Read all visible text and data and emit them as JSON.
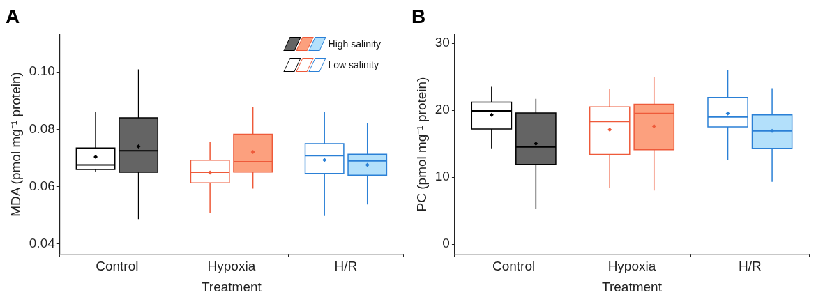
{
  "chart_data": [
    {
      "type": "box",
      "title": "A",
      "xlabel": "Treatment",
      "ylabel": "MDA (pmol mg⁻¹ protein)",
      "categories": [
        "Control",
        "Hypoxia",
        "H/R"
      ],
      "ylim": [
        0.0365,
        0.113
      ],
      "yticks": [
        0.04,
        0.06,
        0.08,
        {
          "value": 0.1,
          "label": "0.10"
        }
      ],
      "grid": false,
      "legend": "top right",
      "series": [
        {
          "name": "Low salinity",
          "colors": [
            "#000000",
            "#ee5a3a",
            "#2b80d6"
          ],
          "boxes": [
            {
              "low": 0.0653,
              "q1": 0.066,
              "median": 0.0676,
              "q3": 0.0735,
              "high": 0.086,
              "mean": 0.0704
            },
            {
              "low": 0.0509,
              "q1": 0.0613,
              "median": 0.065,
              "q3": 0.0692,
              "high": 0.0757,
              "mean": 0.0649
            },
            {
              "low": 0.0498,
              "q1": 0.0646,
              "median": 0.0708,
              "q3": 0.075,
              "high": 0.086,
              "mean": 0.0693
            }
          ]
        },
        {
          "name": "High salinity",
          "colors": [
            "#646464",
            "#fca07e",
            "#b3e0fb"
          ],
          "boxes": [
            {
              "low": 0.0487,
              "q1": 0.065,
              "median": 0.0725,
              "q3": 0.084,
              "high": 0.1009,
              "mean": 0.074
            },
            {
              "low": 0.0593,
              "q1": 0.0651,
              "median": 0.0687,
              "q3": 0.0783,
              "high": 0.0878,
              "mean": 0.0721
            },
            {
              "low": 0.0538,
              "q1": 0.064,
              "median": 0.069,
              "q3": 0.0713,
              "high": 0.0821,
              "mean": 0.0676
            }
          ]
        }
      ]
    },
    {
      "type": "box",
      "title": "B",
      "xlabel": "Treatment",
      "ylabel": "PC (pmol mg⁻¹ protein)",
      "categories": [
        "Control",
        "Hypoxia",
        "H/R"
      ],
      "ylim": [
        -1.5,
        31.3
      ],
      "yticks": [
        0,
        10,
        20,
        30
      ],
      "grid": false,
      "series": [
        {
          "colors": [
            "#000000",
            "#ee5a3a",
            "#2b80d6"
          ],
          "boxes": [
            {
              "low": 14.3,
              "q1": 17.2,
              "median": 19.9,
              "q3": 21.2,
              "high": 23.5,
              "mean": 19.3
            },
            {
              "low": 8.4,
              "q1": 13.4,
              "median": 18.3,
              "q3": 20.5,
              "high": 23.2,
              "mean": 17.1
            },
            {
              "low": 12.6,
              "q1": 17.5,
              "median": 19.0,
              "q3": 21.9,
              "high": 26.0,
              "mean": 19.5
            }
          ]
        },
        {
          "colors": [
            "#646464",
            "#fca07e",
            "#b3e0fb"
          ],
          "boxes": [
            {
              "low": 5.2,
              "q1": 11.9,
              "median": 14.5,
              "q3": 19.6,
              "high": 21.7,
              "mean": 15.0
            },
            {
              "low": 8.0,
              "q1": 14.1,
              "median": 19.5,
              "q3": 20.9,
              "high": 24.9,
              "mean": 17.6
            },
            {
              "low": 9.3,
              "q1": 14.3,
              "median": 16.9,
              "q3": 19.3,
              "high": 23.3,
              "mean": 16.9
            }
          ]
        }
      ]
    }
  ]
}
